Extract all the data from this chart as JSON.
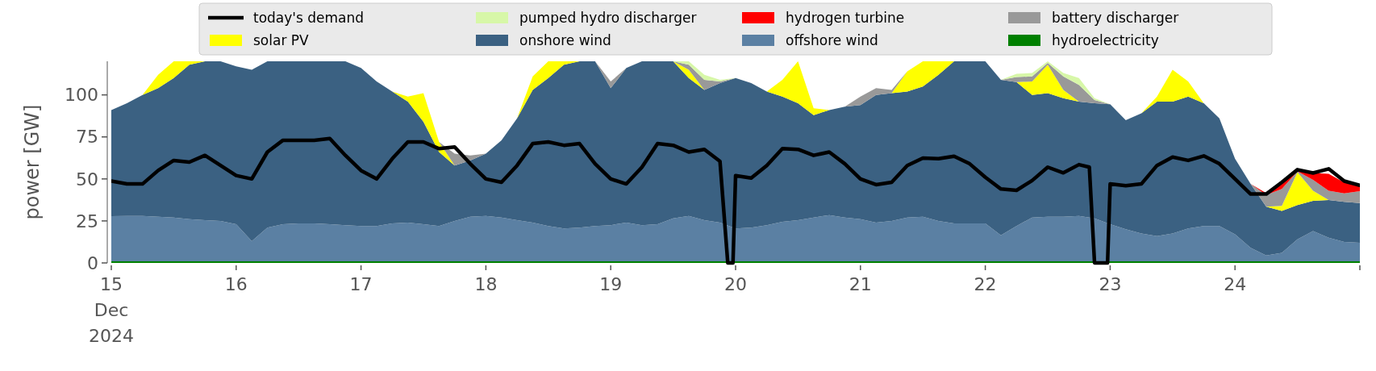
{
  "chart_data": {
    "type": "area",
    "stacked": true,
    "ylabel": "power [GW]",
    "legend": "top",
    "xlim": [
      "2024-12-15",
      "2024-12-25"
    ],
    "xticks": [
      {
        "value": "2024-12-15",
        "label": "15\nDec\n2024"
      },
      {
        "value": "2024-12-16",
        "label": "16"
      },
      {
        "value": "2024-12-17",
        "label": "17"
      },
      {
        "value": "2024-12-18",
        "label": "18"
      },
      {
        "value": "2024-12-19",
        "label": "19"
      },
      {
        "value": "2024-12-20",
        "label": "20"
      },
      {
        "value": "2024-12-21",
        "label": "21"
      },
      {
        "value": "2024-12-22",
        "label": "22"
      },
      {
        "value": "2024-12-23",
        "label": "23"
      },
      {
        "value": "2024-12-24",
        "label": "24"
      },
      {
        "value": "2024-12-25",
        "label": null
      }
    ],
    "ylim": [
      0,
      120
    ],
    "yticks": [
      0,
      25,
      50,
      75,
      100
    ],
    "x": [
      "2024-12-15T00:00",
      "2024-12-15T03:00",
      "2024-12-15T06:00",
      "2024-12-15T09:00",
      "2024-12-15T12:00",
      "2024-12-15T15:00",
      "2024-12-15T18:00",
      "2024-12-15T21:00",
      "2024-12-16T00:00",
      "2024-12-16T03:00",
      "2024-12-16T06:00",
      "2024-12-16T09:00",
      "2024-12-16T12:00",
      "2024-12-16T15:00",
      "2024-12-16T18:00",
      "2024-12-16T21:00",
      "2024-12-17T00:00",
      "2024-12-17T03:00",
      "2024-12-17T06:00",
      "2024-12-17T09:00",
      "2024-12-17T12:00",
      "2024-12-17T15:00",
      "2024-12-17T18:00",
      "2024-12-17T21:00",
      "2024-12-18T00:00",
      "2024-12-18T03:00",
      "2024-12-18T06:00",
      "2024-12-18T09:00",
      "2024-12-18T12:00",
      "2024-12-18T15:00",
      "2024-12-18T18:00",
      "2024-12-18T21:00",
      "2024-12-19T00:00",
      "2024-12-19T03:00",
      "2024-12-19T06:00",
      "2024-12-19T09:00",
      "2024-12-19T12:00",
      "2024-12-19T15:00",
      "2024-12-19T18:00",
      "2024-12-19T21:00",
      "2024-12-20T00:00",
      "2024-12-20T03:00",
      "2024-12-20T06:00",
      "2024-12-20T09:00",
      "2024-12-20T12:00",
      "2024-12-20T15:00",
      "2024-12-20T18:00",
      "2024-12-20T21:00",
      "2024-12-21T00:00",
      "2024-12-21T03:00",
      "2024-12-21T06:00",
      "2024-12-21T09:00",
      "2024-12-21T12:00",
      "2024-12-21T15:00",
      "2024-12-21T18:00",
      "2024-12-21T21:00",
      "2024-12-22T00:00",
      "2024-12-22T03:00",
      "2024-12-22T06:00",
      "2024-12-22T09:00",
      "2024-12-22T12:00",
      "2024-12-22T15:00",
      "2024-12-22T18:00",
      "2024-12-22T21:00",
      "2024-12-23T00:00",
      "2024-12-23T03:00",
      "2024-12-23T06:00",
      "2024-12-23T09:00",
      "2024-12-23T12:00",
      "2024-12-23T15:00",
      "2024-12-23T18:00",
      "2024-12-23T21:00",
      "2024-12-24T00:00",
      "2024-12-24T03:00",
      "2024-12-24T06:00",
      "2024-12-24T09:00",
      "2024-12-24T12:00",
      "2024-12-24T15:00",
      "2024-12-24T18:00",
      "2024-12-24T21:00",
      "2024-12-25T00:00"
    ],
    "series": [
      {
        "name": "hydroelectricity",
        "color": "#008000",
        "values": [
          1,
          1,
          1,
          1,
          1,
          1,
          1,
          1,
          1,
          1,
          1,
          1,
          1,
          1,
          1,
          1,
          1,
          1,
          1,
          1,
          1,
          1,
          1,
          1,
          1,
          1,
          1,
          1,
          1,
          1,
          1,
          1,
          1,
          1,
          1,
          1,
          1,
          1,
          1,
          1,
          1,
          1,
          1,
          1,
          1,
          1,
          1,
          1,
          1,
          1,
          1,
          1,
          1,
          1,
          1,
          1,
          1,
          1,
          1,
          1,
          1,
          1,
          1,
          1,
          1,
          1,
          1,
          1,
          1,
          1,
          1,
          1,
          1,
          1,
          1,
          1,
          1,
          1,
          1,
          1,
          1
        ]
      },
      {
        "name": "offshore wind",
        "color": "#5b80a3",
        "values": [
          26.8,
          27,
          27,
          26.5,
          26,
          25,
          24.5,
          24,
          22,
          12,
          20,
          22,
          22.5,
          22.5,
          22,
          21.5,
          21,
          21,
          22.5,
          23,
          22,
          21,
          24,
          26.5,
          27,
          26,
          24.5,
          23,
          21,
          19.5,
          20,
          21,
          21.5,
          23,
          21.5,
          22,
          25.5,
          27,
          24.5,
          23,
          19.5,
          20,
          21.5,
          23.5,
          24.5,
          26,
          27.5,
          26,
          25,
          23,
          24,
          26,
          26.5,
          24,
          22.5,
          22.5,
          22.5,
          15.5,
          21,
          26,
          26.5,
          26.5,
          27,
          25.5,
          22,
          19,
          16.5,
          15,
          16.5,
          19.5,
          21,
          21,
          16,
          8,
          3.5,
          5,
          13,
          18,
          14,
          11.5,
          11
        ]
      },
      {
        "name": "onshore wind",
        "color": "#3b6182",
        "values": [
          63.2,
          67,
          72,
          76.5,
          83,
          92,
          94.5,
          95,
          94,
          102,
          99,
          97,
          96.5,
          96.5,
          97,
          97.5,
          94,
          86,
          78.5,
          72,
          61,
          44,
          33,
          33.5,
          37,
          46,
          60.5,
          79,
          88,
          97.5,
          99,
          98,
          81.5,
          92,
          97.5,
          97,
          93.5,
          82,
          77.5,
          83,
          89.5,
          86,
          79.5,
          74.5,
          69.5,
          61,
          62.5,
          66,
          68,
          76,
          76,
          75,
          77.5,
          87,
          96.5,
          96.5,
          96.5,
          92.5,
          85.6,
          73,
          73.5,
          70.5,
          68,
          68.5,
          71.5,
          65,
          71.5,
          80,
          78.5,
          78.5,
          73,
          64,
          45,
          38,
          29,
          25,
          20.5,
          18,
          22.5,
          23.9,
          23.7
        ]
      },
      {
        "name": "solar PV",
        "color": "#ffff00",
        "values": [
          0,
          0,
          0,
          8,
          10,
          2,
          0,
          0,
          0,
          0,
          0,
          0,
          0,
          0,
          0,
          0,
          0,
          0,
          0,
          3,
          17,
          6,
          0,
          0,
          0,
          0,
          0,
          8,
          10,
          2,
          0,
          0,
          0,
          0,
          0,
          0,
          0,
          5,
          0,
          0,
          0,
          0,
          0,
          10,
          25,
          4,
          0,
          0,
          0,
          0,
          0,
          12,
          15,
          8,
          0,
          0,
          0,
          0,
          0,
          8,
          17,
          5,
          0,
          0,
          0,
          0,
          0,
          3,
          19,
          9,
          0,
          0,
          0,
          0,
          0,
          3,
          19.5,
          6,
          0,
          0,
          0
        ]
      },
      {
        "name": "battery discharger",
        "color": "#999999",
        "values": [
          0,
          0,
          0,
          0,
          0,
          0,
          0,
          0,
          0,
          0,
          0,
          0,
          0,
          0,
          0,
          0,
          0,
          0,
          0,
          0,
          0,
          0,
          7,
          3,
          0,
          0,
          0,
          0,
          0,
          0,
          0,
          0,
          4,
          0,
          0,
          0,
          0,
          3,
          6,
          1,
          0,
          0,
          0,
          0,
          0,
          0,
          0,
          0,
          5,
          4,
          2,
          0,
          0,
          0,
          0,
          0,
          0,
          0,
          3,
          3,
          1,
          8,
          10,
          2,
          0,
          0,
          0,
          0,
          0,
          0,
          0,
          0,
          0,
          0,
          7,
          10,
          0.5,
          6.5,
          5.5,
          5,
          7
        ]
      },
      {
        "name": "hydrogen turbine",
        "color": "#ff0000",
        "values": [
          0,
          0,
          0,
          0,
          0,
          0,
          0,
          0,
          0,
          0,
          0,
          0,
          0,
          0,
          0,
          0,
          0,
          0,
          0,
          0,
          0,
          0,
          0,
          0,
          0,
          0,
          0,
          0,
          0,
          0,
          0,
          0,
          0,
          0,
          0,
          0,
          0,
          0,
          0,
          0,
          0,
          0,
          0,
          0,
          0,
          0,
          0,
          0,
          0,
          0,
          0,
          0,
          0,
          0,
          0,
          0,
          0,
          0,
          0,
          0,
          0,
          0,
          0,
          0,
          0,
          0,
          0,
          0,
          0,
          0,
          0,
          0,
          0,
          0,
          1,
          3,
          1,
          4,
          10,
          6.5,
          3.3
        ]
      },
      {
        "name": "pumped hydro discharger",
        "color": "#d7f7a8",
        "values": [
          0,
          0,
          0,
          0,
          0,
          0,
          0,
          0,
          0,
          0,
          0,
          0,
          0,
          0,
          0,
          0,
          0,
          0,
          0,
          0,
          0,
          0,
          0,
          0,
          0,
          0,
          0,
          0,
          0,
          0,
          0,
          0,
          0,
          0,
          0,
          0,
          0,
          2,
          3,
          1,
          0,
          0,
          0,
          0,
          0,
          0,
          0,
          0,
          0,
          0,
          0,
          0,
          0,
          0,
          0,
          0,
          0,
          0,
          2,
          2,
          1,
          2,
          4,
          1,
          0,
          0,
          0,
          0,
          0,
          0,
          0,
          0,
          0,
          0,
          0,
          0,
          0,
          0,
          0,
          0,
          0
        ]
      },
      {
        "name": "today's demand",
        "type": "line",
        "color": "#000000",
        "x": [
          "2024-12-15T00:00",
          "2024-12-15T03:00",
          "2024-12-15T06:00",
          "2024-12-15T09:00",
          "2024-12-15T12:00",
          "2024-12-15T15:00",
          "2024-12-15T18:00",
          "2024-12-15T21:00",
          "2024-12-16T00:00",
          "2024-12-16T03:00",
          "2024-12-16T06:00",
          "2024-12-16T09:00",
          "2024-12-16T12:00",
          "2024-12-16T15:00",
          "2024-12-16T18:00",
          "2024-12-16T21:00",
          "2024-12-17T00:00",
          "2024-12-17T03:00",
          "2024-12-17T06:00",
          "2024-12-17T09:00",
          "2024-12-17T12:00",
          "2024-12-17T15:00",
          "2024-12-17T18:00",
          "2024-12-17T21:00",
          "2024-12-18T00:00",
          "2024-12-18T03:00",
          "2024-12-18T06:00",
          "2024-12-18T09:00",
          "2024-12-18T12:00",
          "2024-12-18T15:00",
          "2024-12-18T18:00",
          "2024-12-18T21:00",
          "2024-12-19T00:00",
          "2024-12-19T03:00",
          "2024-12-19T06:00",
          "2024-12-19T09:00",
          "2024-12-19T12:00",
          "2024-12-19T15:00",
          "2024-12-19T18:00",
          "2024-12-19T21:00",
          "2024-12-19T22:30",
          "2024-12-19T23:30",
          "2024-12-20T00:00",
          "2024-12-20T03:00",
          "2024-12-20T06:00",
          "2024-12-20T09:00",
          "2024-12-20T12:00",
          "2024-12-20T15:00",
          "2024-12-20T18:00",
          "2024-12-20T21:00",
          "2024-12-21T00:00",
          "2024-12-21T03:00",
          "2024-12-21T06:00",
          "2024-12-21T09:00",
          "2024-12-21T12:00",
          "2024-12-21T15:00",
          "2024-12-21T18:00",
          "2024-12-21T21:00",
          "2024-12-22T00:00",
          "2024-12-22T03:00",
          "2024-12-22T06:00",
          "2024-12-22T09:00",
          "2024-12-22T12:00",
          "2024-12-22T15:00",
          "2024-12-22T18:00",
          "2024-12-22T20:00",
          "2024-12-22T21:00",
          "2024-12-22T23:30",
          "2024-12-23T00:00",
          "2024-12-23T03:00",
          "2024-12-23T06:00",
          "2024-12-23T09:00",
          "2024-12-23T12:00",
          "2024-12-23T15:00",
          "2024-12-23T18:00",
          "2024-12-23T21:00",
          "2024-12-24T00:00",
          "2024-12-24T03:00",
          "2024-12-24T06:00",
          "2024-12-24T09:00",
          "2024-12-24T12:00",
          "2024-12-24T15:00",
          "2024-12-24T18:00",
          "2024-12-24T21:00",
          "2024-12-25T00:00"
        ],
        "values": [
          48.7,
          47,
          47,
          55,
          61,
          60,
          64,
          58,
          52,
          50,
          66,
          73,
          73,
          73,
          74,
          64,
          55,
          50,
          62,
          72,
          72,
          68,
          69,
          59,
          50,
          48,
          58,
          71,
          72,
          70,
          71,
          59,
          50,
          47,
          57,
          71,
          70,
          66,
          67.6,
          60.5,
          0,
          0,
          52,
          50.5,
          58,
          68,
          67.6,
          64,
          66,
          59,
          50,
          46.6,
          48,
          58,
          62.4,
          62,
          63.5,
          59,
          51,
          44,
          43.2,
          49,
          57,
          53.6,
          58.5,
          57,
          0,
          0,
          47,
          46,
          47,
          58,
          63,
          61,
          63.7,
          59,
          50,
          41,
          41,
          48,
          55.5,
          53.5,
          56,
          48.7,
          46.2
        ]
      }
    ]
  }
}
